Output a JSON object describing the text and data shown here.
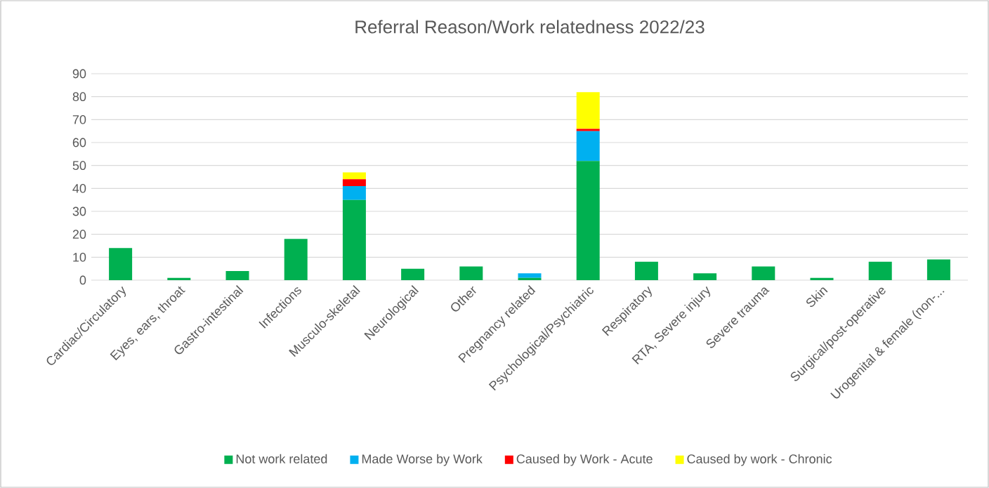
{
  "chart_data": {
    "type": "bar",
    "stacked": true,
    "title": "Referral Reason/Work relatedness 2022/23",
    "categories": [
      "Cardiac/Circulatory",
      "Eyes, ears, throat",
      "Gastro-intestinal",
      "Infections",
      "Musculo-skeletal",
      "Neurological",
      "Other",
      "Pregnancy related",
      "Psychological/Psychiatric",
      "Respiratory",
      "RTA, Severe injury",
      "Severe trauma",
      "Skin",
      "Surgical/post-operative",
      "Urogenital & female (non-..."
    ],
    "series": [
      {
        "name": "Not work related",
        "color": "#00b050",
        "values": [
          14,
          1,
          4,
          18,
          35,
          5,
          6,
          1,
          52,
          8,
          3,
          6,
          1,
          8,
          9
        ]
      },
      {
        "name": "Made Worse by Work",
        "color": "#00b0f0",
        "values": [
          0,
          0,
          0,
          0,
          6,
          0,
          0,
          2,
          13,
          0,
          0,
          0,
          0,
          0,
          0
        ]
      },
      {
        "name": "Caused by Work - Acute",
        "color": "#ff0000",
        "values": [
          0,
          0,
          0,
          0,
          3,
          0,
          0,
          0,
          1,
          0,
          0,
          0,
          0,
          0,
          0
        ]
      },
      {
        "name": "Caused by work - Chronic",
        "color": "#ffff00",
        "values": [
          0,
          0,
          0,
          0,
          3,
          0,
          0,
          0,
          16,
          0,
          0,
          0,
          0,
          0,
          0
        ]
      }
    ],
    "ylim": [
      0,
      90
    ],
    "yticks": [
      0,
      10,
      20,
      30,
      40,
      50,
      60,
      70,
      80,
      90
    ],
    "grid": "y",
    "legend": "bottom"
  }
}
